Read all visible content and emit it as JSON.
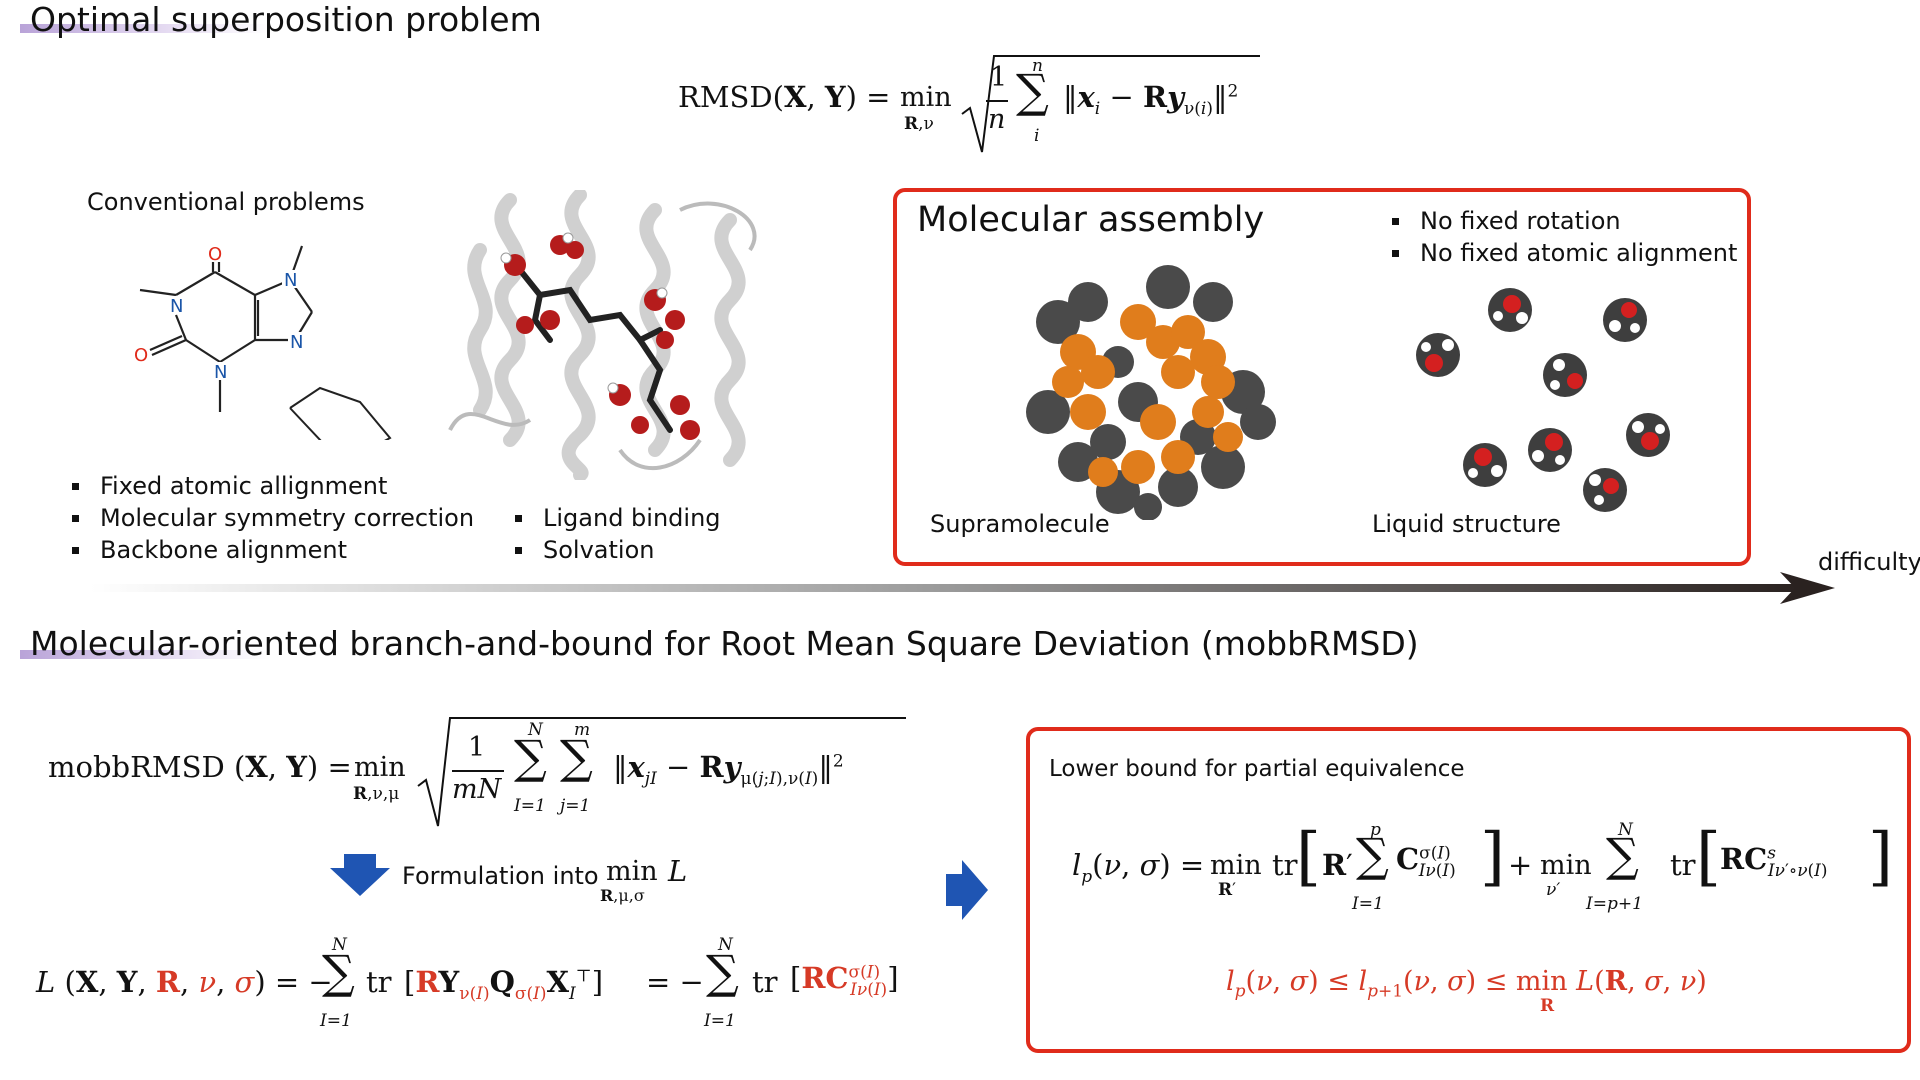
{
  "section1": {
    "title": "Optimal superposition problem",
    "equation": {
      "lhs": "RMSD(X, Y) =",
      "min": "min",
      "min_sub": "R,ν",
      "frac_num": "1",
      "frac_den": "n",
      "sum_top": "n",
      "sum_bottom": "i",
      "body": "‖xi − Ryν(i)‖²"
    }
  },
  "conventional": {
    "heading": "Conventional problems",
    "bullets_left": [
      "Fixed atomic allignment",
      "Molecular symmetry correction",
      "Backbone alignment"
    ],
    "bullets_mid": [
      "Ligand binding",
      "Solvation"
    ],
    "caffeine_atoms": {
      "o1": "O",
      "o2": "O",
      "n1": "N",
      "n2": "N",
      "n3": "N",
      "n4": "N"
    }
  },
  "assembly": {
    "title": "Molecular assembly",
    "bullets": [
      "No fixed rotation",
      "No fixed atomic alignment"
    ],
    "label_left": "Supramolecule",
    "label_right": "Liquid structure"
  },
  "difficulty_label": "difficulty",
  "section2": {
    "title": "Molecular-oriented branch-and-bound for Root Mean Square Deviation (mobbRMSD)",
    "eq1": {
      "lhs": "mobbRMSD (X, Y) =",
      "min": "min",
      "min_sub": "R,ν,μ",
      "frac_num": "1",
      "frac_den": "mN",
      "sum1_top": "N",
      "sum1_bottom": "I=1",
      "sum2_top": "m",
      "sum2_bottom": "j=1",
      "body": "‖xjI − Ryμ(j;I),ν(I)‖²"
    },
    "formulation": {
      "text": "Formulation into",
      "min": "min",
      "min_sub": "R,μ,σ",
      "var": "L"
    },
    "eq2": {
      "lhs": "L (X, Y, R, ν, σ) = −",
      "sum_top": "N",
      "sum_bottom": "I=1",
      "tr": "tr",
      "body": "[RYν(I)Qσ(I)XIᵀ]",
      "mid": "= −",
      "sum2_top": "N",
      "sum2_bottom": "I=1",
      "tr2": "tr",
      "body2": "[RCσ(I)Iν(I)]"
    }
  },
  "lower_bound": {
    "title": "Lower bound for partial equivalence",
    "eq": {
      "lhs": "lp(ν, σ) =",
      "min1": "min",
      "min1_sub": "R′",
      "tr1": "tr",
      "sum1_top": "p",
      "sum1_bottom": "I=1",
      "body1": "[R′ Σ Cσ(I)Iν(I)]",
      "plus": "+",
      "min2": "min",
      "min2_sub": "ν′",
      "sum2_top": "N",
      "sum2_bottom": "I=p+1",
      "tr2": "tr",
      "body2": "[RCsIν′∘ν(I)]"
    },
    "inequality": "lp(ν, σ) ≤ lp+1(ν, σ) ≤ min L(R, σ, ν)",
    "inequality_sub": "R"
  },
  "colors": {
    "accent_red": "#e02b1b",
    "orange": "#e07d1c",
    "dark_gray": "#4a4a4a",
    "blue_arrow": "#1f55b3"
  }
}
